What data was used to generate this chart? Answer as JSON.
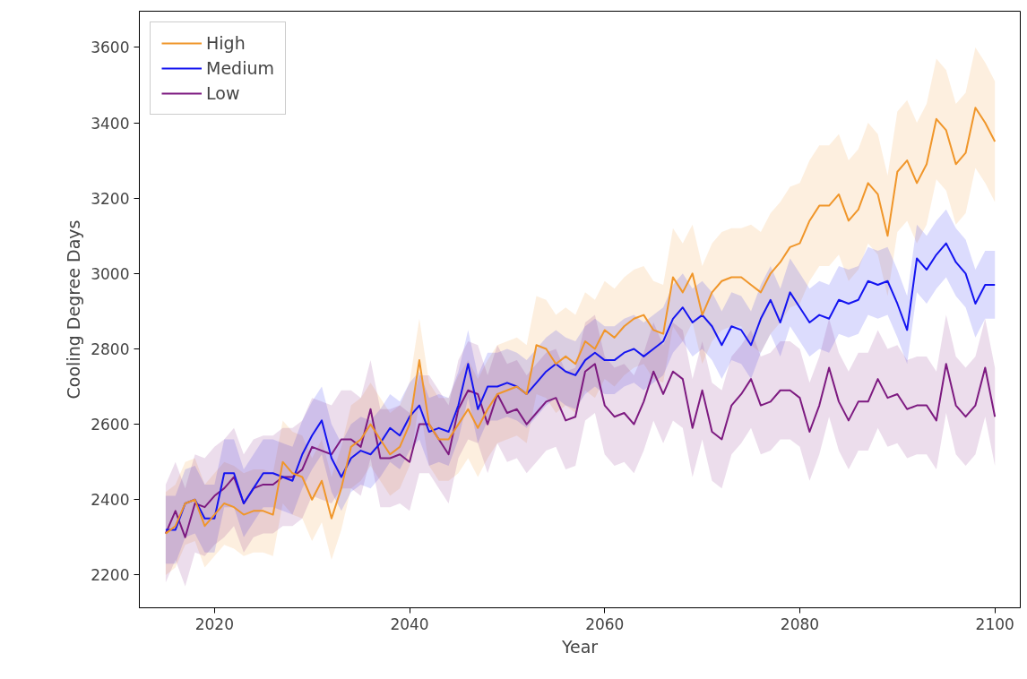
{
  "chart_data": {
    "type": "line",
    "xlabel": "Year",
    "ylabel": "Cooling Degree Days",
    "x": [
      2015,
      2016,
      2017,
      2018,
      2019,
      2020,
      2021,
      2022,
      2023,
      2024,
      2025,
      2026,
      2027,
      2028,
      2029,
      2030,
      2031,
      2032,
      2033,
      2034,
      2035,
      2036,
      2037,
      2038,
      2039,
      2040,
      2041,
      2042,
      2043,
      2044,
      2045,
      2046,
      2047,
      2048,
      2049,
      2050,
      2051,
      2052,
      2053,
      2054,
      2055,
      2056,
      2057,
      2058,
      2059,
      2060,
      2061,
      2062,
      2063,
      2064,
      2065,
      2066,
      2067,
      2068,
      2069,
      2070,
      2071,
      2072,
      2073,
      2074,
      2075,
      2076,
      2077,
      2078,
      2079,
      2080,
      2081,
      2082,
      2083,
      2084,
      2085,
      2086,
      2087,
      2088,
      2089,
      2090,
      2091,
      2092,
      2093,
      2094,
      2095,
      2096,
      2097,
      2098,
      2099,
      2100
    ],
    "series": [
      {
        "name": "High",
        "color": "#f0962a",
        "values": [
          2310,
          2330,
          2390,
          2400,
          2330,
          2360,
          2390,
          2380,
          2360,
          2370,
          2370,
          2360,
          2500,
          2470,
          2460,
          2400,
          2450,
          2350,
          2430,
          2540,
          2560,
          2600,
          2560,
          2520,
          2540,
          2600,
          2770,
          2600,
          2560,
          2560,
          2600,
          2640,
          2590,
          2640,
          2680,
          2690,
          2700,
          2680,
          2810,
          2800,
          2760,
          2780,
          2760,
          2820,
          2800,
          2850,
          2830,
          2860,
          2880,
          2890,
          2850,
          2840,
          2990,
          2950,
          3000,
          2890,
          2950,
          2980,
          2990,
          2990,
          2970,
          2950,
          3000,
          3030,
          3070,
          3080,
          3140,
          3180,
          3180,
          3210,
          3140,
          3170,
          3240,
          3210,
          3100,
          3270,
          3300,
          3240,
          3290,
          3410,
          3380,
          3290,
          3320,
          3440,
          3400,
          3350
        ],
        "lower": [
          2200,
          2220,
          2280,
          2290,
          2220,
          2250,
          2280,
          2270,
          2250,
          2260,
          2260,
          2250,
          2390,
          2360,
          2350,
          2290,
          2340,
          2240,
          2320,
          2430,
          2450,
          2490,
          2450,
          2410,
          2430,
          2490,
          2660,
          2490,
          2450,
          2450,
          2470,
          2510,
          2460,
          2510,
          2550,
          2560,
          2570,
          2550,
          2680,
          2670,
          2630,
          2650,
          2630,
          2690,
          2670,
          2720,
          2700,
          2730,
          2750,
          2760,
          2720,
          2710,
          2860,
          2820,
          2870,
          2760,
          2820,
          2850,
          2860,
          2860,
          2810,
          2790,
          2840,
          2870,
          2910,
          2920,
          2980,
          3020,
          3020,
          3050,
          2980,
          3010,
          3080,
          3050,
          2940,
          3110,
          3140,
          3080,
          3130,
          3250,
          3220,
          3130,
          3160,
          3280,
          3240,
          3190
        ],
        "upper": [
          2420,
          2440,
          2500,
          2510,
          2440,
          2470,
          2500,
          2490,
          2470,
          2480,
          2480,
          2470,
          2610,
          2580,
          2570,
          2510,
          2560,
          2460,
          2540,
          2650,
          2670,
          2710,
          2670,
          2630,
          2650,
          2710,
          2880,
          2710,
          2670,
          2670,
          2730,
          2770,
          2720,
          2770,
          2810,
          2820,
          2830,
          2810,
          2940,
          2930,
          2890,
          2910,
          2890,
          2950,
          2930,
          2980,
          2960,
          2990,
          3010,
          3020,
          2980,
          2970,
          3120,
          3080,
          3130,
          3020,
          3080,
          3110,
          3120,
          3120,
          3130,
          3110,
          3160,
          3190,
          3230,
          3240,
          3300,
          3340,
          3340,
          3370,
          3300,
          3330,
          3400,
          3370,
          3260,
          3430,
          3460,
          3400,
          3450,
          3570,
          3540,
          3450,
          3480,
          3600,
          3560,
          3510
        ]
      },
      {
        "name": "Medium",
        "color": "#1414f0",
        "values": [
          2320,
          2320,
          2390,
          2400,
          2350,
          2350,
          2470,
          2470,
          2390,
          2430,
          2470,
          2470,
          2460,
          2450,
          2520,
          2570,
          2610,
          2510,
          2460,
          2510,
          2530,
          2520,
          2550,
          2590,
          2570,
          2620,
          2650,
          2580,
          2590,
          2580,
          2650,
          2760,
          2640,
          2700,
          2700,
          2710,
          2700,
          2680,
          2710,
          2740,
          2760,
          2740,
          2730,
          2770,
          2790,
          2770,
          2770,
          2790,
          2800,
          2780,
          2800,
          2820,
          2880,
          2910,
          2870,
          2890,
          2860,
          2810,
          2860,
          2850,
          2810,
          2880,
          2930,
          2870,
          2950,
          2910,
          2870,
          2890,
          2880,
          2930,
          2920,
          2930,
          2980,
          2970,
          2980,
          2920,
          2850,
          3040,
          3010,
          3050,
          3080,
          3030,
          3000,
          2920,
          2970,
          2970
        ],
        "lower": [
          2230,
          2230,
          2300,
          2310,
          2260,
          2260,
          2380,
          2380,
          2300,
          2340,
          2380,
          2380,
          2370,
          2360,
          2430,
          2480,
          2520,
          2420,
          2370,
          2420,
          2440,
          2430,
          2460,
          2500,
          2480,
          2530,
          2560,
          2490,
          2500,
          2490,
          2560,
          2670,
          2550,
          2610,
          2610,
          2620,
          2610,
          2590,
          2620,
          2650,
          2670,
          2650,
          2640,
          2680,
          2700,
          2680,
          2680,
          2700,
          2710,
          2690,
          2710,
          2730,
          2790,
          2820,
          2780,
          2800,
          2770,
          2720,
          2770,
          2760,
          2720,
          2790,
          2840,
          2780,
          2860,
          2820,
          2780,
          2800,
          2790,
          2840,
          2830,
          2840,
          2890,
          2880,
          2890,
          2830,
          2760,
          2950,
          2920,
          2960,
          2990,
          2940,
          2910,
          2830,
          2880,
          2880
        ],
        "upper": [
          2410,
          2410,
          2480,
          2490,
          2440,
          2440,
          2560,
          2560,
          2480,
          2520,
          2560,
          2560,
          2550,
          2540,
          2610,
          2660,
          2700,
          2600,
          2550,
          2600,
          2620,
          2610,
          2640,
          2680,
          2660,
          2710,
          2740,
          2670,
          2680,
          2670,
          2740,
          2850,
          2730,
          2790,
          2790,
          2800,
          2790,
          2770,
          2800,
          2830,
          2850,
          2830,
          2820,
          2860,
          2880,
          2860,
          2860,
          2880,
          2890,
          2870,
          2890,
          2910,
          2970,
          3000,
          2960,
          2980,
          2950,
          2900,
          2950,
          2940,
          2900,
          2970,
          3020,
          2960,
          3040,
          3000,
          2960,
          2980,
          2970,
          3020,
          3010,
          3020,
          3070,
          3060,
          3070,
          3010,
          2940,
          3130,
          3100,
          3140,
          3170,
          3120,
          3090,
          3010,
          3060,
          3060
        ]
      },
      {
        "name": "Low",
        "color": "#7d1a80",
        "values": [
          2310,
          2370,
          2300,
          2390,
          2380,
          2410,
          2430,
          2460,
          2390,
          2430,
          2440,
          2440,
          2460,
          2460,
          2480,
          2540,
          2530,
          2520,
          2560,
          2560,
          2540,
          2640,
          2510,
          2510,
          2520,
          2500,
          2600,
          2600,
          2560,
          2520,
          2640,
          2690,
          2680,
          2600,
          2680,
          2630,
          2640,
          2600,
          2630,
          2660,
          2670,
          2610,
          2620,
          2740,
          2760,
          2650,
          2620,
          2630,
          2600,
          2660,
          2740,
          2680,
          2740,
          2720,
          2590,
          2690,
          2580,
          2560,
          2650,
          2680,
          2720,
          2650,
          2660,
          2690,
          2690,
          2670,
          2580,
          2650,
          2750,
          2660,
          2610,
          2660,
          2660,
          2720,
          2670,
          2680,
          2640,
          2650,
          2650,
          2610,
          2760,
          2650,
          2620,
          2650,
          2750,
          2620
        ],
        "lower": [
          2180,
          2240,
          2170,
          2260,
          2250,
          2280,
          2300,
          2330,
          2260,
          2300,
          2310,
          2310,
          2330,
          2330,
          2350,
          2410,
          2400,
          2390,
          2430,
          2430,
          2410,
          2510,
          2380,
          2380,
          2390,
          2370,
          2470,
          2470,
          2430,
          2390,
          2510,
          2560,
          2550,
          2470,
          2550,
          2500,
          2510,
          2470,
          2500,
          2530,
          2540,
          2480,
          2490,
          2610,
          2630,
          2520,
          2490,
          2500,
          2470,
          2530,
          2610,
          2550,
          2610,
          2590,
          2460,
          2560,
          2450,
          2430,
          2520,
          2550,
          2590,
          2520,
          2530,
          2560,
          2560,
          2540,
          2450,
          2520,
          2620,
          2530,
          2480,
          2530,
          2530,
          2590,
          2540,
          2550,
          2510,
          2520,
          2520,
          2480,
          2630,
          2520,
          2490,
          2520,
          2620,
          2490
        ],
        "upper": [
          2440,
          2500,
          2430,
          2520,
          2510,
          2540,
          2560,
          2590,
          2520,
          2560,
          2570,
          2570,
          2590,
          2590,
          2610,
          2670,
          2660,
          2650,
          2690,
          2690,
          2670,
          2770,
          2640,
          2640,
          2650,
          2630,
          2730,
          2730,
          2690,
          2650,
          2770,
          2820,
          2810,
          2730,
          2810,
          2760,
          2770,
          2730,
          2760,
          2790,
          2800,
          2740,
          2750,
          2870,
          2890,
          2780,
          2750,
          2760,
          2730,
          2790,
          2870,
          2810,
          2870,
          2850,
          2720,
          2820,
          2710,
          2690,
          2780,
          2810,
          2850,
          2780,
          2790,
          2820,
          2820,
          2800,
          2710,
          2780,
          2880,
          2790,
          2740,
          2790,
          2790,
          2850,
          2800,
          2810,
          2770,
          2780,
          2780,
          2740,
          2890,
          2780,
          2750,
          2780,
          2880,
          2750
        ]
      }
    ],
    "xlim": [
      2012.3,
      2102.6
    ],
    "ylim": [
      2113,
      3696
    ],
    "xticks": [
      2020,
      2040,
      2060,
      2080,
      2100
    ],
    "yticks": [
      2200,
      2400,
      2600,
      2800,
      3000,
      3200,
      3400,
      3600
    ],
    "grid": false,
    "legend": "top left"
  }
}
